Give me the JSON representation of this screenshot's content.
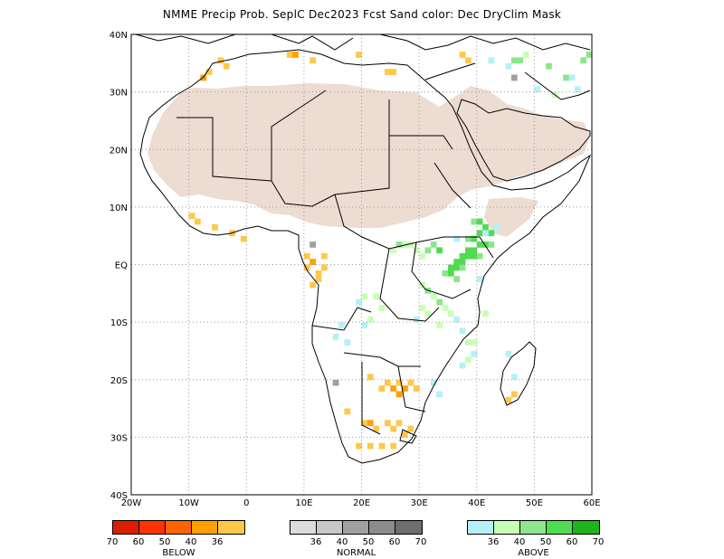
{
  "title": "NMME Precip Prob. SeplC   Dec2023 Fcst   Sand color: Dec DryClim Mask",
  "map": {
    "lat_labels": [
      "40N",
      "30N",
      "20N",
      "10N",
      "EQ",
      "10S",
      "20S",
      "30S",
      "40S"
    ],
    "lon_labels": [
      "20W",
      "10W",
      "0",
      "10E",
      "20E",
      "30E",
      "40E",
      "50E",
      "60E"
    ],
    "lon_range": [
      -20,
      60
    ],
    "lat_range": [
      -40,
      40
    ],
    "colors": {
      "dry_mask": "#eddcd2",
      "below_36": "#ffc848",
      "below_40": "#ffa000",
      "above_36": "#b4f0fa",
      "above_40": "#c8ffb4",
      "above_50": "#8ce68c",
      "above_60": "#50dc50",
      "normal_36": "#a0a0a0"
    }
  },
  "legend": {
    "below": {
      "label": "BELOW",
      "colors": [
        "#dc1e00",
        "#ff3200",
        "#ff6400",
        "#ffa000",
        "#ffc848"
      ],
      "ticks": [
        "70",
        "60",
        "50",
        "40",
        "36"
      ]
    },
    "normal": {
      "label": "NORMAL",
      "colors": [
        "#dcdcdc",
        "#c8c8c8",
        "#a0a0a0",
        "#8c8c8c",
        "#6e6e6e"
      ],
      "ticks": [
        "36",
        "40",
        "50",
        "60",
        "70"
      ]
    },
    "above": {
      "label": "ABOVE",
      "colors": [
        "#b4f0fa",
        "#c8ffb4",
        "#8ce68c",
        "#50dc50",
        "#1eb41e"
      ],
      "ticks": [
        "36",
        "40",
        "50",
        "60",
        "70"
      ]
    }
  }
}
